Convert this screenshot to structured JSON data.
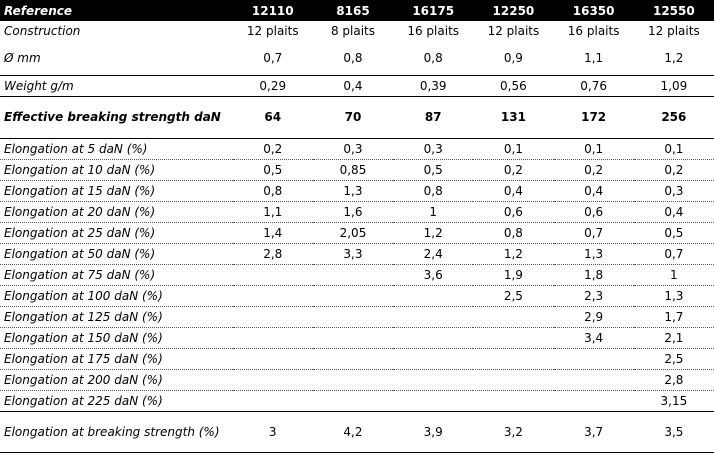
{
  "header": {
    "label": "Reference",
    "references": [
      "12110",
      "8165",
      "16175",
      "12250",
      "16350",
      "12550"
    ]
  },
  "rows": [
    {
      "label": "Construction",
      "values": [
        "12 plaits",
        "8 plaits",
        "16 plaits",
        "12 plaits",
        "16 plaits",
        "12 plaits"
      ]
    },
    {
      "label": "Ø mm",
      "values": [
        "0,7",
        "0,8",
        "0,8",
        "0,9",
        "1,1",
        "1,2"
      ]
    },
    {
      "label": "Weight g/m",
      "values": [
        "0,29",
        "0,4",
        "0,39",
        "0,56",
        "0,76",
        "1,09"
      ]
    },
    {
      "label": "Effective breaking strength daN",
      "values": [
        "64",
        "70",
        "87",
        "131",
        "172",
        "256"
      ]
    },
    {
      "label": "Elongation at 5 daN (%)",
      "values": [
        "0,2",
        "0,3",
        "0,3",
        "0,1",
        "0,1",
        "0,1"
      ]
    },
    {
      "label": "Elongation at 10 daN (%)",
      "values": [
        "0,5",
        "0,85",
        "0,5",
        "0,2",
        "0,2",
        "0,2"
      ]
    },
    {
      "label": "Elongation at 15 daN (%)",
      "values": [
        "0,8",
        "1,3",
        "0,8",
        "0,4",
        "0,4",
        "0,3"
      ]
    },
    {
      "label": "Elongation at 20 daN (%)",
      "values": [
        "1,1",
        "1,6",
        "1",
        "0,6",
        "0,6",
        "0,4"
      ]
    },
    {
      "label": "Elongation at 25 daN (%)",
      "values": [
        "1,4",
        "2,05",
        "1,2",
        "0,8",
        "0,7",
        "0,5"
      ]
    },
    {
      "label": "Elongation at 50 daN (%)",
      "values": [
        "2,8",
        "3,3",
        "2,4",
        "1,2",
        "1,3",
        "0,7"
      ]
    },
    {
      "label": "Elongation at 75 daN (%)",
      "values": [
        "",
        "",
        "3,6",
        "1,9",
        "1,8",
        "1"
      ]
    },
    {
      "label": "Elongation at 100 daN (%)",
      "values": [
        "",
        "",
        "",
        "2,5",
        "2,3",
        "1,3"
      ]
    },
    {
      "label": "Elongation at 125 daN (%)",
      "values": [
        "",
        "",
        "",
        "",
        "2,9",
        "1,7"
      ]
    },
    {
      "label": "Elongation at 150 daN (%)",
      "values": [
        "",
        "",
        "",
        "",
        "3,4",
        "2,1"
      ]
    },
    {
      "label": "Elongation at 175 daN (%)",
      "values": [
        "",
        "",
        "",
        "",
        "",
        "2,5"
      ]
    },
    {
      "label": "Elongation at 200 daN (%)",
      "values": [
        "",
        "",
        "",
        "",
        "",
        "2,8"
      ]
    },
    {
      "label": "Elongation at 225 daN (%)",
      "values": [
        "",
        "",
        "",
        "",
        "",
        "3,15"
      ]
    },
    {
      "label": "Elongation at breaking strength (%)",
      "values": [
        "3",
        "4,2",
        "3,9",
        "3,2",
        "3,7",
        "3,5"
      ]
    }
  ]
}
